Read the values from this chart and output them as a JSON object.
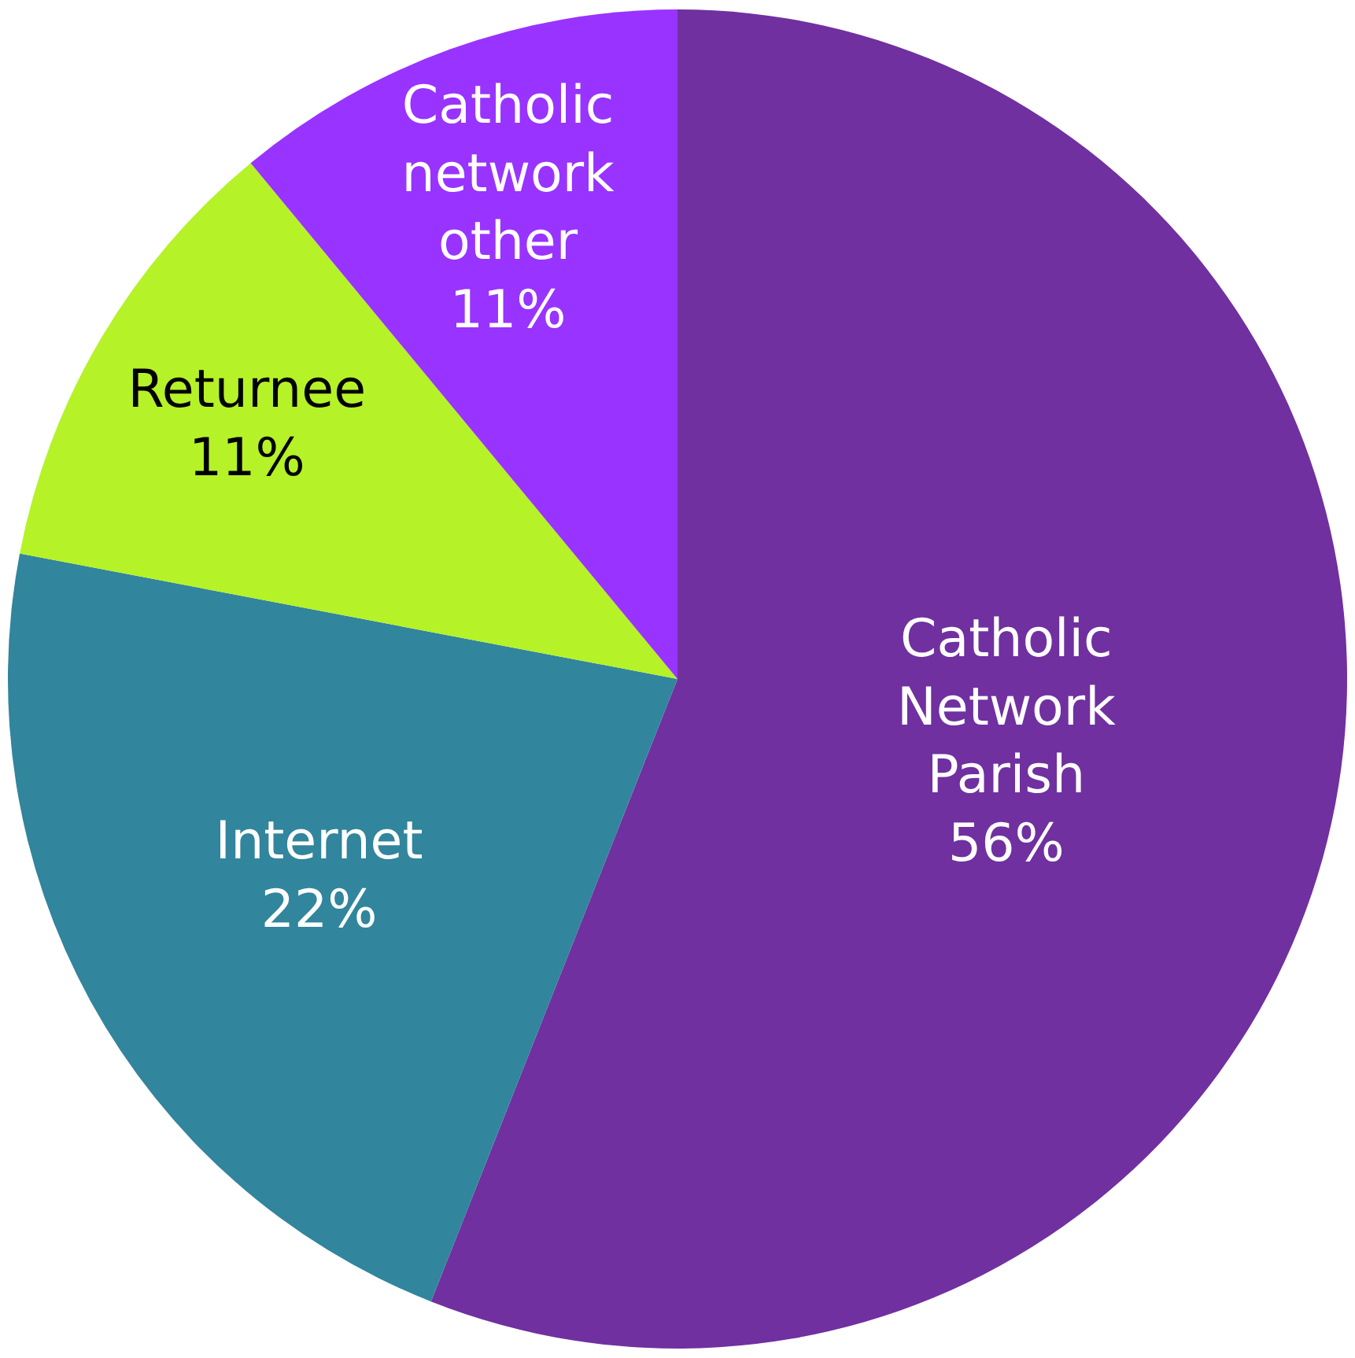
{
  "chart_data": {
    "type": "pie",
    "categories": [
      "Catholic Network Parish",
      "Internet",
      "Returnee",
      "Catholic network other"
    ],
    "values": [
      56,
      22,
      11,
      11
    ],
    "colors": [
      "#7030a0",
      "#31859c",
      "#b5f227",
      "#9933ff"
    ],
    "value_labels": [
      "56%",
      "22%",
      "11%",
      "11%"
    ],
    "legend": false
  }
}
